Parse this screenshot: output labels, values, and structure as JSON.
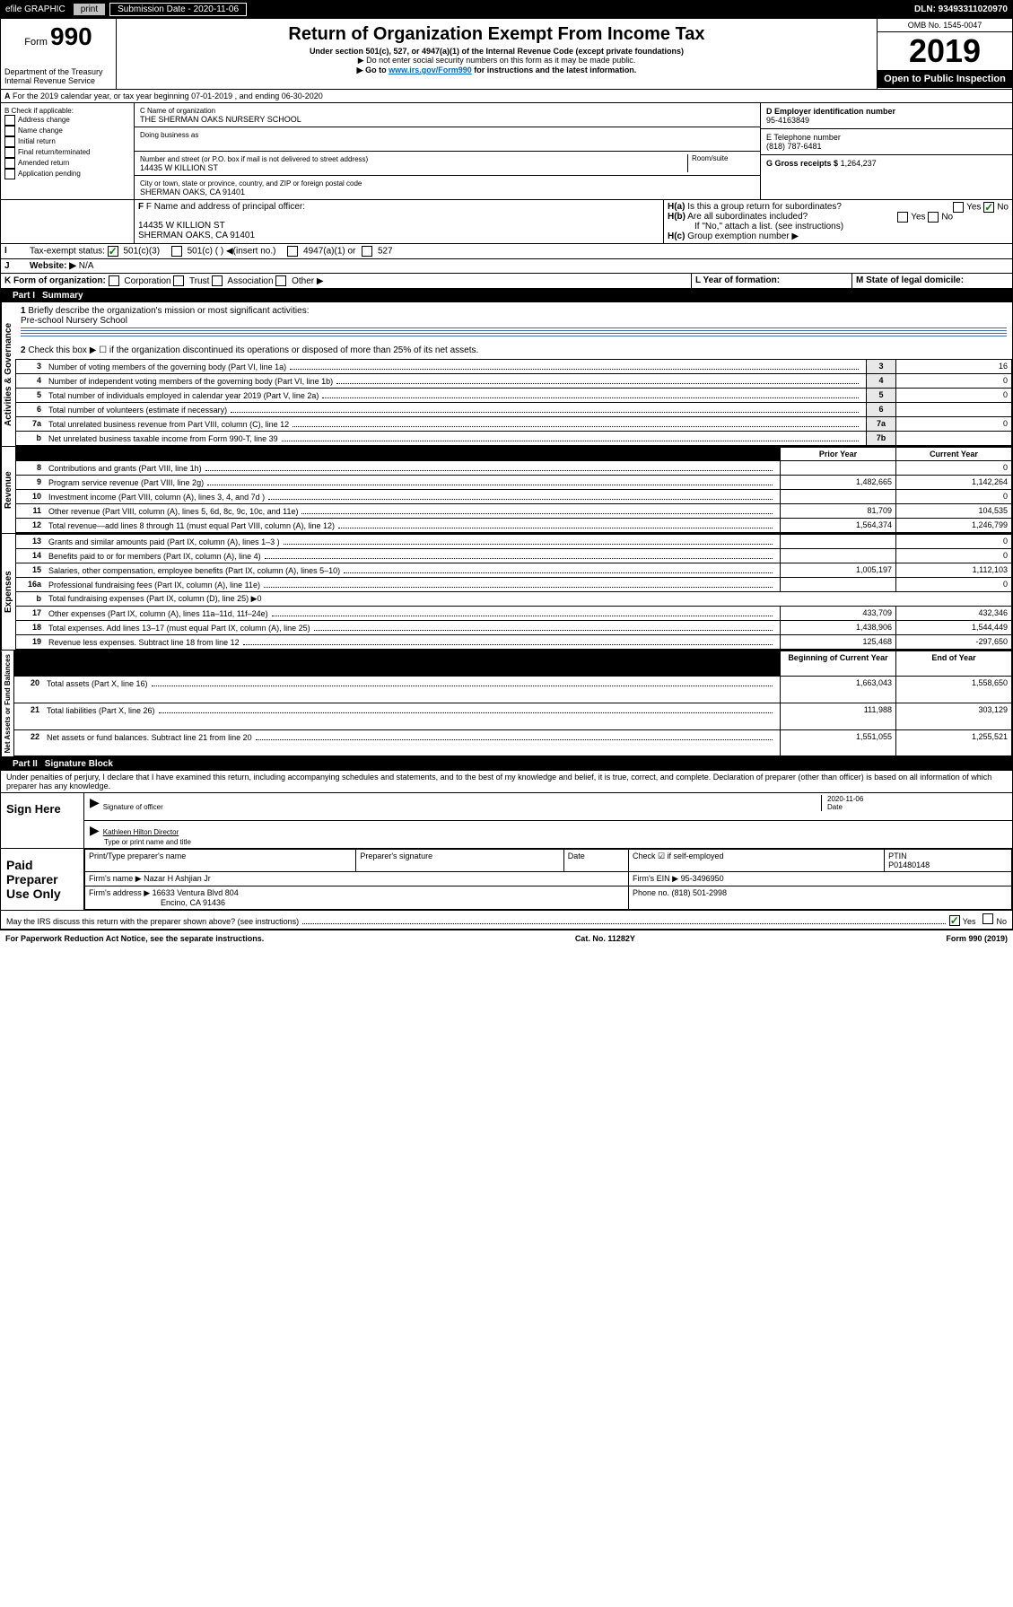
{
  "topbar": {
    "efile": "efile GRAPHIC",
    "print": "print",
    "subdate_label": "Submission Date - 2020-11-06",
    "dln": "DLN: 93493311020970"
  },
  "hdr": {
    "form_prefix": "Form",
    "form_no": "990",
    "title": "Return of Organization Exempt From Income Tax",
    "sub1": "Under section 501(c), 527, or 4947(a)(1) of the Internal Revenue Code (except private foundations)",
    "sub2": "▶ Do not enter social security numbers on this form as it may be made public.",
    "sub3_a": "▶ Go to ",
    "sub3_link": "www.irs.gov/Form990",
    "sub3_b": " for instructions and the latest information.",
    "dept": "Department of the Treasury",
    "irs": "Internal Revenue Service",
    "omb": "OMB No. 1545-0047",
    "year": "2019",
    "open": "Open to Public Inspection"
  },
  "a": {
    "text": "For the 2019 calendar year, or tax year beginning 07-01-2019    , and ending 06-30-2020"
  },
  "b": {
    "label": "B Check if applicable:",
    "items": [
      "Address change",
      "Name change",
      "Initial return",
      "Final return/terminated",
      "Amended return",
      "Application pending"
    ]
  },
  "c": {
    "name_label": "C Name of organization",
    "name": "THE SHERMAN OAKS NURSERY SCHOOL",
    "dba_label": "Doing business as",
    "addr_label": "Number and street (or P.O. box if mail is not delivered to street address)",
    "room_label": "Room/suite",
    "addr": "14435 W KILLION ST",
    "city_label": "City or town, state or province, country, and ZIP or foreign postal code",
    "city": "SHERMAN OAKS, CA  91401"
  },
  "d": {
    "label": "D Employer identification number",
    "ein": "95-4163849"
  },
  "e": {
    "label": "E Telephone number",
    "phone": "(818) 787-6481"
  },
  "g": {
    "label": "G Gross receipts $",
    "val": "1,264,237"
  },
  "f": {
    "label": "F  Name and address of principal officer:",
    "addr1": "14435 W KILLION ST",
    "addr2": "SHERMAN OAKS, CA  91401"
  },
  "h": {
    "a": "Is this a group return for subordinates?",
    "b": "Are all subordinates included?",
    "c": "If \"No,\" attach a list. (see instructions)",
    "d": "Group exemption number ▶"
  },
  "i": {
    "label": "Tax-exempt status:",
    "o1": "501(c)(3)",
    "o2": "501(c) (  ) ◀(insert no.)",
    "o3": "4947(a)(1) or",
    "o4": "527"
  },
  "j": {
    "label": "Website: ▶",
    "val": "N/A"
  },
  "k": {
    "label": "K Form of organization:",
    "o": [
      "Corporation",
      "Trust",
      "Association",
      "Other ▶"
    ]
  },
  "l": {
    "label": "L Year of formation:"
  },
  "m": {
    "label": "M State of legal domicile:"
  },
  "p1": {
    "title": "Part I",
    "sub": "Summary",
    "q1": "Briefly describe the organization's mission or most significant activities:",
    "mission": "Pre-school Nursery School",
    "q2": "Check this box ▶ ☐  if the organization discontinued its operations or disposed of more than 25% of its net assets.",
    "rows_ag": [
      {
        "n": "3",
        "d": "Number of voting members of the governing body (Part VI, line 1a)",
        "i": "3",
        "v": "16"
      },
      {
        "n": "4",
        "d": "Number of independent voting members of the governing body (Part VI, line 1b)",
        "i": "4",
        "v": "0"
      },
      {
        "n": "5",
        "d": "Total number of individuals employed in calendar year 2019 (Part V, line 2a)",
        "i": "5",
        "v": "0"
      },
      {
        "n": "6",
        "d": "Total number of volunteers (estimate if necessary)",
        "i": "6",
        "v": ""
      },
      {
        "n": "7a",
        "d": "Total unrelated business revenue from Part VIII, column (C), line 12",
        "i": "7a",
        "v": "0"
      },
      {
        "n": "b",
        "d": "Net unrelated business taxable income from Form 990-T, line 39",
        "i": "7b",
        "v": ""
      }
    ],
    "col_py": "Prior Year",
    "col_cy": "Current Year",
    "rev": [
      {
        "n": "8",
        "d": "Contributions and grants (Part VIII, line 1h)",
        "p": "",
        "c": "0"
      },
      {
        "n": "9",
        "d": "Program service revenue (Part VIII, line 2g)",
        "p": "1,482,665",
        "c": "1,142,264"
      },
      {
        "n": "10",
        "d": "Investment income (Part VIII, column (A), lines 3, 4, and 7d )",
        "p": "",
        "c": "0"
      },
      {
        "n": "11",
        "d": "Other revenue (Part VIII, column (A), lines 5, 6d, 8c, 9c, 10c, and 11e)",
        "p": "81,709",
        "c": "104,535"
      },
      {
        "n": "12",
        "d": "Total revenue—add lines 8 through 11 (must equal Part VIII, column (A), line 12)",
        "p": "1,564,374",
        "c": "1,246,799"
      }
    ],
    "exp": [
      {
        "n": "13",
        "d": "Grants and similar amounts paid (Part IX, column (A), lines 1–3 )",
        "p": "",
        "c": "0"
      },
      {
        "n": "14",
        "d": "Benefits paid to or for members (Part IX, column (A), line 4)",
        "p": "",
        "c": "0"
      },
      {
        "n": "15",
        "d": "Salaries, other compensation, employee benefits (Part IX, column (A), lines 5–10)",
        "p": "1,005,197",
        "c": "1,112,103"
      },
      {
        "n": "16a",
        "d": "Professional fundraising fees (Part IX, column (A), line 11e)",
        "p": "",
        "c": "0"
      },
      {
        "n": "b",
        "d": "Total fundraising expenses (Part IX, column (D), line 25) ▶0",
        "p": null,
        "c": null
      },
      {
        "n": "17",
        "d": "Other expenses (Part IX, column (A), lines 11a–11d, 11f–24e)",
        "p": "433,709",
        "c": "432,346"
      },
      {
        "n": "18",
        "d": "Total expenses. Add lines 13–17 (must equal Part IX, column (A), line 25)",
        "p": "1,438,906",
        "c": "1,544,449"
      },
      {
        "n": "19",
        "d": "Revenue less expenses. Subtract line 18 from line 12",
        "p": "125,468",
        "c": "-297,650"
      }
    ],
    "col_by": "Beginning of Current Year",
    "col_ey": "End of Year",
    "na": [
      {
        "n": "20",
        "d": "Total assets (Part X, line 16)",
        "p": "1,663,043",
        "c": "1,558,650"
      },
      {
        "n": "21",
        "d": "Total liabilities (Part X, line 26)",
        "p": "111,988",
        "c": "303,129"
      },
      {
        "n": "22",
        "d": "Net assets or fund balances. Subtract line 21 from line 20",
        "p": "1,551,055",
        "c": "1,255,521"
      }
    ],
    "side": [
      "Activities & Governance",
      "Revenue",
      "Expenses",
      "Net Assets or Fund Balances"
    ]
  },
  "p2": {
    "title": "Part II",
    "sub": "Signature Block",
    "decl": "Under penalties of perjury, I declare that I have examined this return, including accompanying schedules and statements, and to the best of my knowledge and belief, it is true, correct, and complete. Declaration of preparer (other than officer) is based on all information of which preparer has any knowledge.",
    "sign_here": "Sign Here",
    "sig_off": "Signature of officer",
    "date_label": "Date",
    "date": "2020-11-06",
    "signer": "Kathleen Hilton  Director",
    "type_label": "Type or print name and title",
    "paid": "Paid Preparer Use Only",
    "pp_name_label": "Print/Type preparer's name",
    "pp_sig_label": "Preparer's signature",
    "pp_date": "Date",
    "pp_check": "Check ☑ if self-employed",
    "ptin_label": "PTIN",
    "ptin": "P01480148",
    "firm_name_label": "Firm's name   ▶",
    "firm_name": "Nazar H Ashjian Jr",
    "firm_ein_label": "Firm's EIN ▶",
    "firm_ein": "95-3496950",
    "firm_addr_label": "Firm's address ▶",
    "firm_addr": "16633 Ventura Blvd 804",
    "firm_city": "Encino, CA  91436",
    "phone_label": "Phone no.",
    "phone": "(818) 501-2998",
    "discuss": "May the IRS discuss this return with the preparer shown above? (see instructions)"
  },
  "foot": {
    "pra": "For Paperwork Reduction Act Notice, see the separate instructions.",
    "cat": "Cat. No. 11282Y",
    "form": "Form 990 (2019)"
  }
}
